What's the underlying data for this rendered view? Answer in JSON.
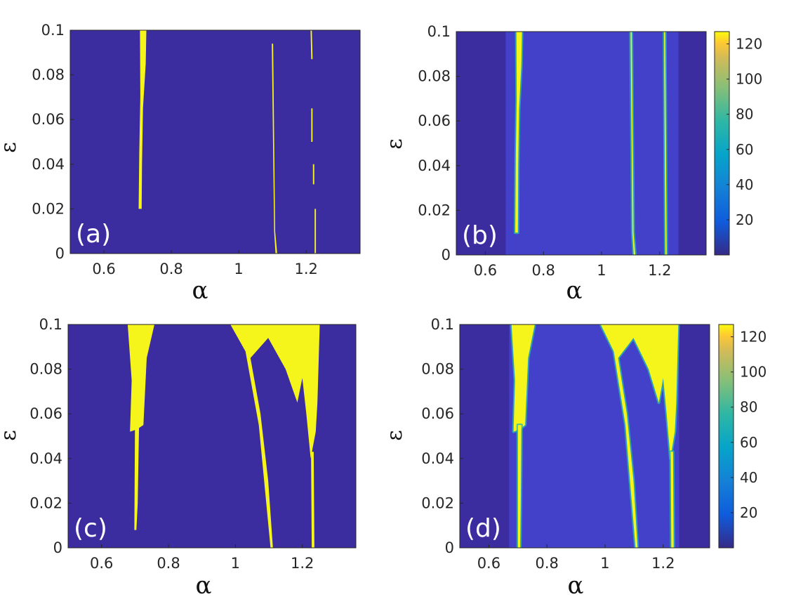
{
  "chart_data": [
    {
      "id": "a",
      "type": "heatmap",
      "panel_label": "(a)",
      "xlabel": "α",
      "ylabel": "ε",
      "xlim": [
        0.5,
        1.36
      ],
      "ylim": [
        0,
        0.1
      ],
      "xticks": [
        "0.6",
        "0.8",
        "1",
        "1.2"
      ],
      "yticks": [
        "0",
        "0.02",
        "0.04",
        "0.06",
        "0.08",
        "0.1"
      ],
      "background": "#3b2c9f",
      "foreground": "#f6f51b",
      "regions": [
        {
          "name": "tongue-0.71",
          "pts": [
            [
              0.707,
              0.1
            ],
            [
              0.726,
              0.1
            ],
            [
              0.724,
              0.085
            ],
            [
              0.716,
              0.065
            ],
            [
              0.713,
              0.04
            ],
            [
              0.712,
              0.02
            ],
            [
              0.703,
              0.02
            ],
            [
              0.705,
              0.045
            ],
            [
              0.708,
              0.07
            ]
          ]
        },
        {
          "name": "line-1.10",
          "pts": [
            [
              1.098,
              0.094
            ],
            [
              1.102,
              0.094
            ],
            [
              1.108,
              0.01
            ],
            [
              1.114,
              0
            ],
            [
              1.109,
              0
            ],
            [
              1.105,
              0.01
            ]
          ]
        },
        {
          "name": "line-1.22",
          "pts": [
            [
              1.213,
              0.1
            ],
            [
              1.217,
              0.1
            ],
            [
              1.219,
              0.087
            ],
            [
              1.215,
              0.087
            ]
          ]
        },
        {
          "name": "seg-1.22b",
          "pts": [
            [
              1.215,
              0.065
            ],
            [
              1.219,
              0.065
            ],
            [
              1.219,
              0.05
            ],
            [
              1.215,
              0.05
            ]
          ]
        },
        {
          "name": "seg-1.22c",
          "pts": [
            [
              1.22,
              0.04
            ],
            [
              1.224,
              0.04
            ],
            [
              1.224,
              0.031
            ],
            [
              1.22,
              0.031
            ]
          ]
        },
        {
          "name": "seg-1.23",
          "pts": [
            [
              1.225,
              0.02
            ],
            [
              1.229,
              0.02
            ],
            [
              1.229,
              0
            ],
            [
              1.225,
              0
            ]
          ]
        }
      ]
    },
    {
      "id": "b",
      "type": "heatmap",
      "panel_label": "(b)",
      "xlabel": "α",
      "ylabel": "ε",
      "xlim": [
        0.5,
        1.36
      ],
      "ylim": [
        0,
        0.1
      ],
      "xticks": [
        "0.6",
        "0.8",
        "1",
        "1.2"
      ],
      "yticks": [
        "0",
        "0.02",
        "0.04",
        "0.06",
        "0.08",
        "0.1"
      ],
      "background": "#3b2c9f",
      "middle": "#4341c9",
      "foreground": "#f6f51b",
      "band": [
        0.67,
        1.265
      ],
      "colorbar": {
        "ticks": [
          "20",
          "40",
          "60",
          "80",
          "100",
          "120"
        ],
        "min": 0,
        "max": 127
      },
      "regions": [
        {
          "name": "tongue-0.71",
          "pts": [
            [
              0.707,
              0.1
            ],
            [
              0.726,
              0.1
            ],
            [
              0.724,
              0.085
            ],
            [
              0.716,
              0.065
            ],
            [
              0.713,
              0.04
            ],
            [
              0.712,
              0.01
            ],
            [
              0.703,
              0.01
            ],
            [
              0.705,
              0.045
            ],
            [
              0.708,
              0.07
            ]
          ]
        },
        {
          "name": "line-1.10",
          "pts": [
            [
              1.1,
              0.1
            ],
            [
              1.104,
              0.1
            ],
            [
              1.11,
              0.01
            ],
            [
              1.116,
              0
            ],
            [
              1.111,
              0
            ],
            [
              1.106,
              0.01
            ]
          ]
        },
        {
          "name": "line-1.22",
          "pts": [
            [
              1.215,
              0.1
            ],
            [
              1.219,
              0.1
            ],
            [
              1.224,
              0
            ],
            [
              1.22,
              0
            ]
          ]
        }
      ]
    },
    {
      "id": "c",
      "type": "heatmap",
      "panel_label": "(c)",
      "xlabel": "α",
      "ylabel": "ε",
      "xlim": [
        0.5,
        1.36
      ],
      "ylim": [
        0,
        0.1
      ],
      "xticks": [
        "0.6",
        "0.8",
        "1",
        "1.2"
      ],
      "yticks": [
        "0",
        "0.02",
        "0.04",
        "0.06",
        "0.08",
        "0.1"
      ],
      "background": "#3b2c9f",
      "foreground": "#f6f51b",
      "regions": [
        {
          "name": "tongue-0.7-top",
          "pts": [
            [
              0.678,
              0.1
            ],
            [
              0.758,
              0.1
            ],
            [
              0.735,
              0.085
            ],
            [
              0.725,
              0.055
            ],
            [
              0.705,
              0.053
            ],
            [
              0.685,
              0.052
            ],
            [
              0.69,
              0.075
            ]
          ]
        },
        {
          "name": "tongue-0.7-stem",
          "pts": [
            [
              0.7,
              0.055
            ],
            [
              0.712,
              0.055
            ],
            [
              0.708,
              0.02
            ],
            [
              0.704,
              0.008
            ],
            [
              0.698,
              0.008
            ]
          ]
        },
        {
          "name": "big-1.0",
          "pts": [
            [
              0.985,
              0.1
            ],
            [
              1.252,
              0.1
            ],
            [
              1.245,
              0.065
            ],
            [
              1.24,
              0.052
            ],
            [
              1.225,
              0.04
            ],
            [
              1.212,
              0.06
            ],
            [
              1.2,
              0.076
            ],
            [
              1.185,
              0.065
            ],
            [
              1.15,
              0.08
            ],
            [
              1.098,
              0.094
            ],
            [
              1.045,
              0.085
            ],
            [
              1.075,
              0.06
            ],
            [
              1.098,
              0.03
            ],
            [
              1.112,
              0
            ],
            [
              1.105,
              0
            ],
            [
              1.07,
              0.055
            ],
            [
              1.03,
              0.088
            ]
          ]
        },
        {
          "name": "strip-1.24",
          "pts": [
            [
              1.226,
              0.043
            ],
            [
              1.234,
              0.043
            ],
            [
              1.236,
              0
            ],
            [
              1.228,
              0
            ]
          ]
        }
      ],
      "cutouts": [
        {
          "name": "hollow-1.12",
          "pts": [
            [
              1.095,
              0.087
            ],
            [
              1.13,
              0.073
            ],
            [
              1.175,
              0.05
            ],
            [
              1.195,
              0.058
            ],
            [
              1.17,
              0.069
            ],
            [
              1.13,
              0.083
            ]
          ]
        }
      ]
    },
    {
      "id": "d",
      "type": "heatmap",
      "panel_label": "(d)",
      "xlabel": "α",
      "ylabel": "ε",
      "xlim": [
        0.5,
        1.36
      ],
      "ylim": [
        0,
        0.1
      ],
      "xticks": [
        "0.6",
        "0.8",
        "1",
        "1.2"
      ],
      "yticks": [
        "0",
        "0.02",
        "0.04",
        "0.06",
        "0.08",
        "0.1"
      ],
      "background": "#3b2c9f",
      "middle": "#4341c9",
      "foreground": "#f6f51b",
      "band": [
        0.67,
        1.255
      ],
      "colorbar": {
        "ticks": [
          "20",
          "40",
          "60",
          "80",
          "100",
          "120"
        ],
        "min": 0,
        "max": 127
      },
      "regions": [
        {
          "name": "tongue-0.7-top",
          "pts": [
            [
              0.678,
              0.1
            ],
            [
              0.758,
              0.1
            ],
            [
              0.735,
              0.085
            ],
            [
              0.725,
              0.055
            ],
            [
              0.705,
              0.053
            ],
            [
              0.685,
              0.052
            ],
            [
              0.69,
              0.075
            ]
          ]
        },
        {
          "name": "tongue-0.7-stem",
          "pts": [
            [
              0.7,
              0.055
            ],
            [
              0.712,
              0.055
            ],
            [
              0.71,
              0.02
            ],
            [
              0.708,
              0
            ],
            [
              0.7,
              0
            ]
          ]
        },
        {
          "name": "big-1.0",
          "pts": [
            [
              0.985,
              0.1
            ],
            [
              1.252,
              0.1
            ],
            [
              1.245,
              0.065
            ],
            [
              1.24,
              0.052
            ],
            [
              1.225,
              0.04
            ],
            [
              1.212,
              0.06
            ],
            [
              1.2,
              0.076
            ],
            [
              1.185,
              0.065
            ],
            [
              1.15,
              0.08
            ],
            [
              1.098,
              0.094
            ],
            [
              1.045,
              0.085
            ],
            [
              1.075,
              0.06
            ],
            [
              1.098,
              0.03
            ],
            [
              1.112,
              0
            ],
            [
              1.105,
              0
            ],
            [
              1.07,
              0.055
            ],
            [
              1.03,
              0.088
            ]
          ]
        },
        {
          "name": "strip-1.24",
          "pts": [
            [
              1.226,
              0.043
            ],
            [
              1.234,
              0.043
            ],
            [
              1.236,
              0
            ],
            [
              1.228,
              0
            ]
          ]
        }
      ],
      "cutouts": [
        {
          "name": "hollow-1.12",
          "pts": [
            [
              1.095,
              0.087
            ],
            [
              1.13,
              0.073
            ],
            [
              1.175,
              0.05
            ],
            [
              1.195,
              0.058
            ],
            [
              1.17,
              0.069
            ],
            [
              1.13,
              0.083
            ]
          ]
        }
      ]
    }
  ]
}
